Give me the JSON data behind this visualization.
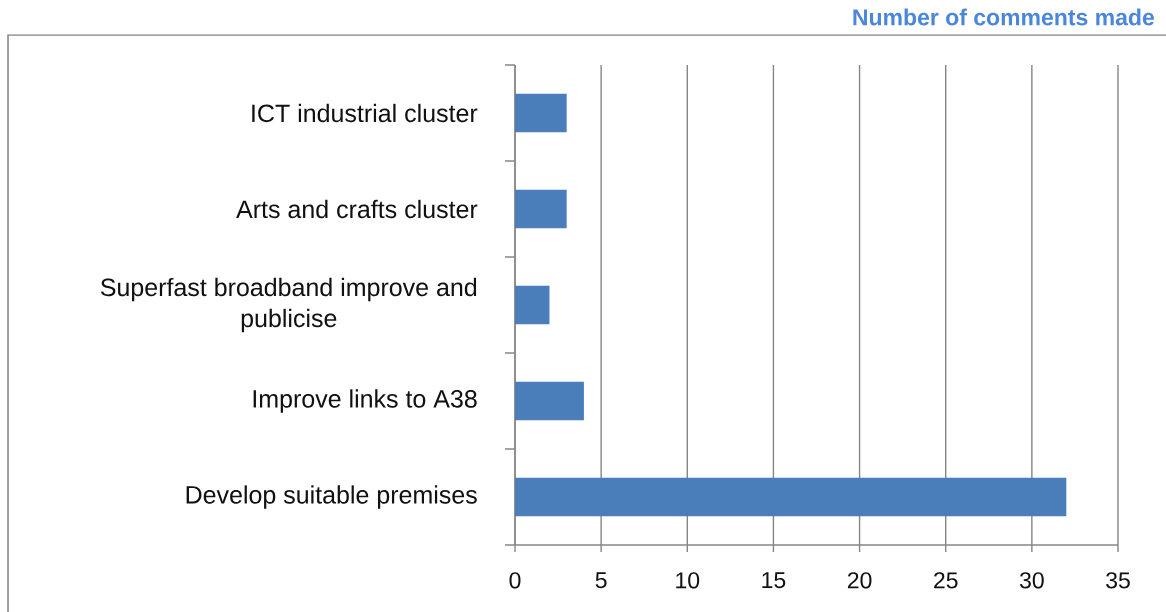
{
  "chart_data": {
    "type": "bar",
    "orientation": "horizontal",
    "title": "Number of comments made",
    "categories": [
      "ICT industrial cluster",
      "Arts and crafts cluster",
      "Superfast broadband improve and publicise",
      "Improve links to A38",
      "Develop suitable premises"
    ],
    "values": [
      3,
      3,
      2,
      4,
      32
    ],
    "color": "#4a7ebb",
    "xlim": [
      0,
      35
    ],
    "xticks": [
      0,
      5,
      10,
      15,
      20,
      25,
      30,
      35
    ],
    "grid": "x"
  }
}
